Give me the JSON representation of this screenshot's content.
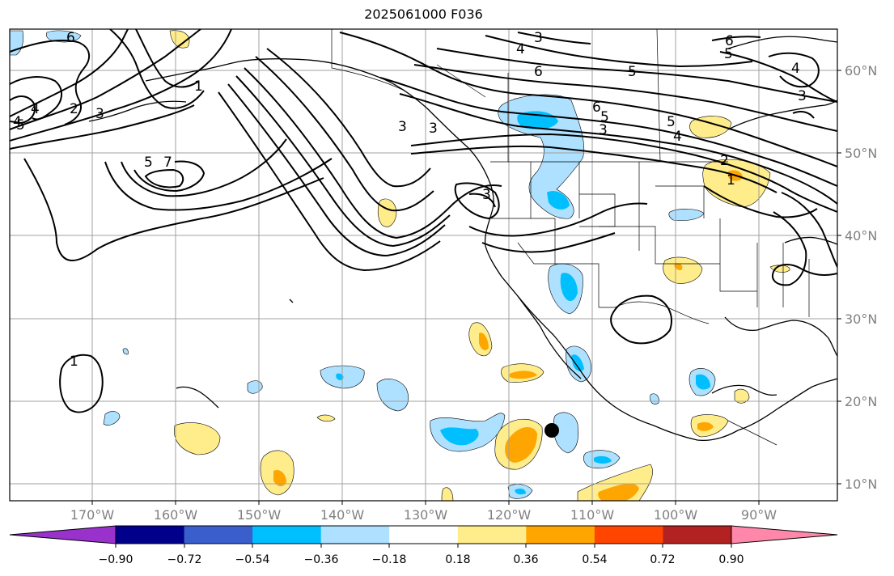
{
  "title": "2025061000 F036",
  "map": {
    "lon_labels": [
      "170°W",
      "160°W",
      "150°W",
      "140°W",
      "130°W",
      "120°W",
      "110°W",
      "100°W",
      "90°W"
    ],
    "lat_labels": [
      "60°N",
      "50°N",
      "40°N",
      "30°N",
      "20°N",
      "10°N"
    ],
    "contour_labels": [
      "6",
      "3",
      "4",
      "5",
      "3",
      "2",
      "4",
      "6",
      "5",
      "6",
      "5",
      "3",
      "6",
      "5",
      "4",
      "3",
      "2",
      "1",
      "4",
      "3",
      "5",
      "7",
      "3",
      "1",
      "1",
      "3",
      "4",
      "5"
    ],
    "colors": {
      "pos_light": "#ffec8b",
      "pos_mid": "#ffa500",
      "neg_light": "#aee0ff",
      "neg_mid": "#00bfff",
      "contour": "#000000",
      "grid": "#a0a0a0",
      "marker": "#000000"
    }
  },
  "colorbar": {
    "ticks": [
      "−0.90",
      "−0.72",
      "−0.54",
      "−0.36",
      "−0.18",
      "0.18",
      "0.36",
      "0.54",
      "0.72",
      "0.90"
    ],
    "colors": [
      "#9932cc",
      "#00008b",
      "#3a5fcd",
      "#00bfff",
      "#aee0ff",
      "#ffffff",
      "#ffec8b",
      "#ffa500",
      "#ff4500",
      "#b22222",
      "#ff88aa"
    ]
  }
}
